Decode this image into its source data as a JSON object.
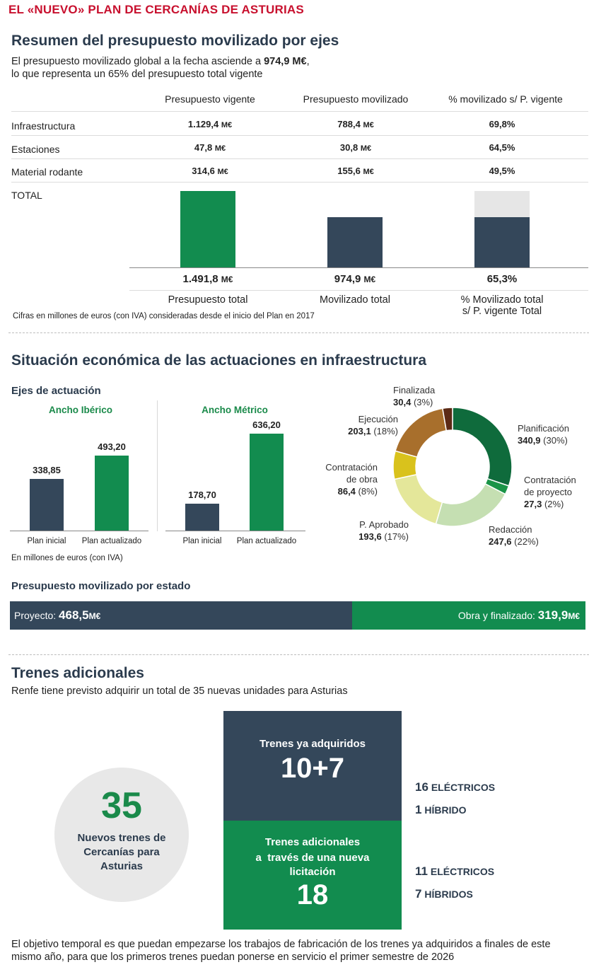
{
  "kicker": "EL «NUEVO» PLAN DE CERCANÍAS DE ASTURIAS",
  "s1": {
    "title": "Resumen del presupuesto movilizado por ejes",
    "sub1_pre": "El presupuesto movilizado global a la fecha asciende a ",
    "sub1_bold": "974,9 M€",
    "sub1_post": ",",
    "sub2": "lo que representa un 65% del presupuesto total vigente",
    "headers": [
      "Presupuesto vigente",
      "Presupuesto movilizado",
      "% movilizado s/ P. vigente"
    ],
    "rows": [
      {
        "label": "Infraestructura",
        "vigente": "1.129,4",
        "movilizado": "788,4",
        "pct": "69,8%"
      },
      {
        "label": "Estaciones",
        "vigente": "47,8",
        "movilizado": "30,8",
        "pct": "64,5%"
      },
      {
        "label": "Material rodante",
        "vigente": "314,6",
        "movilizado": "155,6",
        "pct": "49,5%"
      }
    ],
    "unit": "M€",
    "total_label": "TOTAL",
    "total_values": [
      "1.491,8",
      "974,9",
      "65,3%"
    ],
    "total_captions": [
      "Presupuesto total",
      "Movilizado total",
      "% Movilizado total",
      "s/ P. vigente Total"
    ],
    "footnote": "Cifras en millones de euros (con IVA) consideradas desde el inicio del Plan en 2017"
  },
  "s2": {
    "title": "Situación económica de las actuaciones en infraestructura",
    "ejes": "Ejes de actuación",
    "iberico": "Ancho Ibérico",
    "metrico": "Ancho Métrico",
    "xcats": [
      "Plan inicial",
      "Plan actualizado"
    ],
    "footnote": "En millones de euros (con IVA)",
    "estado_title": "Presupuesto movilizado por estado",
    "proyecto_label": "Proyecto:",
    "proyecto_value": "468,5",
    "obra_label": "Obra y finalizado:",
    "obra_value": "319,9",
    "unit": "M€"
  },
  "chart_data": [
    {
      "type": "bar",
      "title": "TOTAL",
      "categories": [
        "Presupuesto total",
        "Movilizado total",
        "% Movilizado total s/ P. vigente Total"
      ],
      "values": [
        1491.8,
        974.9,
        65.3
      ],
      "colors": [
        "#128c4f",
        "#34475a",
        "#34475a"
      ]
    },
    {
      "type": "bar",
      "title": "Ancho Ibérico",
      "categories": [
        "Plan inicial",
        "Plan actualizado"
      ],
      "values": [
        338.85,
        493.2
      ],
      "labels": [
        "338,85",
        "493,20"
      ],
      "ylim": [
        0,
        700
      ]
    },
    {
      "type": "bar",
      "title": "Ancho Métrico",
      "categories": [
        "Plan inicial",
        "Plan actualizado"
      ],
      "values": [
        178.7,
        636.2
      ],
      "labels": [
        "178,70",
        "636,20"
      ],
      "ylim": [
        0,
        700
      ]
    },
    {
      "type": "pie",
      "slices": [
        {
          "name": "Planificación",
          "value": 340.9,
          "value_label": "340,9",
          "pct": "(30%)",
          "color": "#0f6b3c"
        },
        {
          "name": "Contratación de proyecto",
          "value": 27.3,
          "value_label": "27,3",
          "pct": "(2%)",
          "color": "#1a9447"
        },
        {
          "name": "Redacción",
          "value": 247.6,
          "value_label": "247,6",
          "pct": "(22%)",
          "color": "#c5dfb2"
        },
        {
          "name": "P. Aprobado",
          "value": 193.6,
          "value_label": "193,6",
          "pct": "(17%)",
          "color": "#e4e79a"
        },
        {
          "name": "Contratación de obra",
          "value": 86.4,
          "value_label": "86,4",
          "pct": "(8%)",
          "color": "#d9c21c"
        },
        {
          "name": "Ejecución",
          "value": 203.1,
          "value_label": "203,1",
          "pct": "(18%)",
          "color": "#a86f2c"
        },
        {
          "name": "Finalizada",
          "value": 30.4,
          "value_label": "30,4",
          "pct": "(3%)",
          "color": "#5c2a16"
        }
      ]
    },
    {
      "type": "bar",
      "title": "Presupuesto movilizado por estado",
      "categories": [
        "Proyecto",
        "Obra y finalizado"
      ],
      "values": [
        468.5,
        319.9
      ],
      "colors": [
        "#34475a",
        "#128c4f"
      ]
    }
  ],
  "s3": {
    "title": "Trenes adicionales",
    "sub": "Renfe tiene previsto adquirir un total de 35 nuevas unidades para Asturias",
    "circle_number": "35",
    "circle_text": [
      "Nuevos trenes de",
      "Cercanías para",
      "Asturias"
    ],
    "box1_title": "Trenes ya adquiridos",
    "box1_value": "10+7",
    "box2_title": [
      "Trenes adicionales",
      "a  través de una nueva",
      "licitación"
    ],
    "box2_value": "18",
    "side1": [
      {
        "n": "16",
        "t": "ELÉCTRICOS"
      },
      {
        "n": "1",
        "t": "HÍBRIDO"
      }
    ],
    "side2": [
      {
        "n": "11",
        "t": "ELÉCTRICOS"
      },
      {
        "n": "7",
        "t": "HÍBRIDOS"
      }
    ],
    "closing": [
      "El objetivo temporal es que puedan empezarse los trabajos de fabricación de los trenes ya adquiridos a finales de este",
      "mismo año, para que los primeros trenes puedan ponerse en servicio el primer semestre de 2026"
    ]
  },
  "colors": {
    "green": "#128c4f",
    "navy": "#34475a",
    "red": "#c8102e",
    "grey": "#e6e6e6",
    "circle": "#e8e8e8"
  }
}
